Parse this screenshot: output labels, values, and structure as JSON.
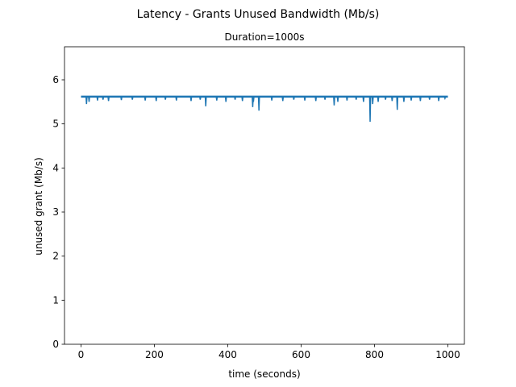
{
  "chart_data": {
    "type": "line",
    "suptitle": "Latency - Grants Unused Bandwidth (Mb/s)",
    "title": "Duration=1000s",
    "xlabel": "time (seconds)",
    "ylabel": "unused grant (Mb/s)",
    "xlim": [
      -45,
      1045
    ],
    "ylim": [
      0,
      6.75
    ],
    "xticks": [
      0,
      200,
      400,
      600,
      800,
      1000
    ],
    "yticks": [
      0,
      1,
      2,
      3,
      4,
      5,
      6
    ],
    "grid": false,
    "baseline": 5.61,
    "x_start": 0,
    "x_end": 1000,
    "series": [
      {
        "color": "#1f77b4",
        "dips": [
          [
            15,
            5.45
          ],
          [
            22,
            5.5
          ],
          [
            45,
            5.53
          ],
          [
            60,
            5.55
          ],
          [
            75,
            5.52
          ],
          [
            110,
            5.54
          ],
          [
            140,
            5.55
          ],
          [
            175,
            5.53
          ],
          [
            205,
            5.52
          ],
          [
            230,
            5.55
          ],
          [
            260,
            5.53
          ],
          [
            300,
            5.52
          ],
          [
            325,
            5.55
          ],
          [
            340,
            5.4
          ],
          [
            370,
            5.53
          ],
          [
            395,
            5.5
          ],
          [
            420,
            5.55
          ],
          [
            440,
            5.52
          ],
          [
            468,
            5.38
          ],
          [
            470,
            5.5
          ],
          [
            485,
            5.3
          ],
          [
            520,
            5.53
          ],
          [
            550,
            5.52
          ],
          [
            580,
            5.55
          ],
          [
            610,
            5.53
          ],
          [
            640,
            5.52
          ],
          [
            665,
            5.55
          ],
          [
            690,
            5.42
          ],
          [
            700,
            5.5
          ],
          [
            725,
            5.53
          ],
          [
            750,
            5.55
          ],
          [
            770,
            5.5
          ],
          [
            788,
            5.05
          ],
          [
            795,
            5.45
          ],
          [
            810,
            5.5
          ],
          [
            830,
            5.55
          ],
          [
            848,
            5.52
          ],
          [
            862,
            5.32
          ],
          [
            880,
            5.5
          ],
          [
            900,
            5.53
          ],
          [
            925,
            5.52
          ],
          [
            950,
            5.55
          ],
          [
            975,
            5.52
          ],
          [
            992,
            5.58
          ]
        ]
      }
    ]
  }
}
